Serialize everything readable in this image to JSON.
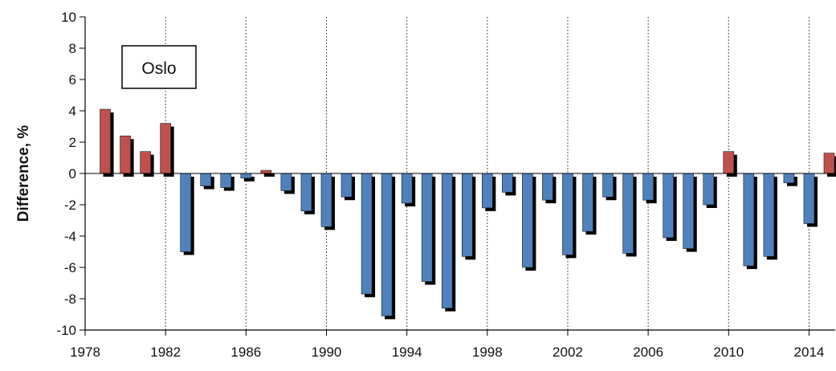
{
  "chart_data": {
    "type": "bar",
    "annotation": "Oslo",
    "ylabel": "Difference, %",
    "xlabel": "",
    "ylim": [
      -10,
      10
    ],
    "yticks": [
      10,
      8,
      6,
      4,
      2,
      0,
      -2,
      -4,
      -6,
      -8,
      -10
    ],
    "ytick_labels": [
      "10",
      "8",
      "6",
      "4",
      "2",
      "0",
      "-2",
      "-4",
      "-6",
      "-8",
      "-10"
    ],
    "xlim": [
      1978,
      2015.3
    ],
    "xticks": [
      1978,
      1982,
      1986,
      1990,
      1994,
      1998,
      2002,
      2006,
      2010,
      2014
    ],
    "xtick_labels": [
      "1978",
      "1982",
      "1986",
      "1990",
      "1994",
      "1998",
      "2002",
      "2006",
      "2010",
      "2014"
    ],
    "grid": "vertical dashed lines at x ticks",
    "colors": {
      "positive": "#c0504d",
      "negative": "#4f81bd",
      "shadow": "#000000"
    },
    "x": [
      1979,
      1980,
      1981,
      1982,
      1983,
      1984,
      1985,
      1986,
      1987,
      1988,
      1989,
      1990,
      1991,
      1992,
      1993,
      1994,
      1995,
      1996,
      1997,
      1998,
      1999,
      2000,
      2001,
      2002,
      2003,
      2004,
      2005,
      2006,
      2007,
      2008,
      2009,
      2010,
      2011,
      2012,
      2013,
      2014,
      2015
    ],
    "values": [
      4.1,
      2.4,
      1.4,
      3.2,
      -5.0,
      -0.8,
      -0.9,
      -0.3,
      0.2,
      -1.1,
      -2.4,
      -3.4,
      -1.5,
      -7.7,
      -9.1,
      -1.9,
      -6.9,
      -8.6,
      -5.3,
      -2.2,
      -1.2,
      -6.0,
      -1.7,
      -5.2,
      -3.7,
      -1.5,
      -5.1,
      -1.7,
      -4.1,
      -4.8,
      -2.0,
      1.4,
      -5.9,
      -5.3,
      -0.6,
      -3.2,
      1.3
    ]
  }
}
